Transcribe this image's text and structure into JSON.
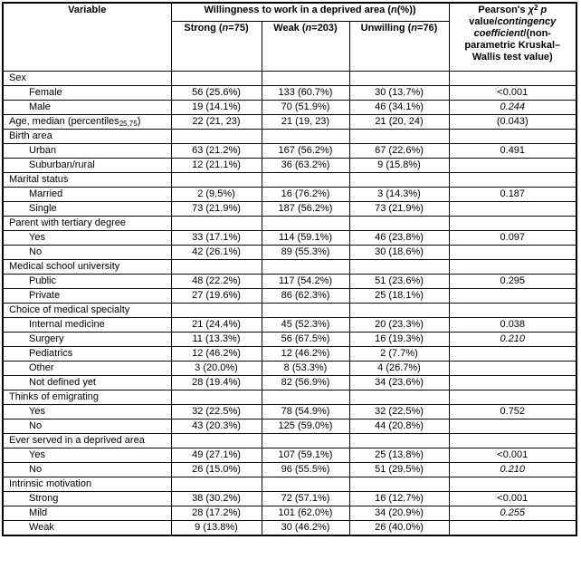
{
  "colors": {
    "background": "#ffffff",
    "text": "#000000",
    "border": "#000000"
  },
  "table": {
    "header": {
      "variable": "Variable",
      "group": [
        {
          "t": "Willingness to work in a deprived area ("
        },
        {
          "t": "n",
          "s": "i"
        },
        {
          "t": "(%))"
        }
      ],
      "cols": [
        [
          {
            "t": "Strong ("
          },
          {
            "t": "n",
            "s": "i"
          },
          {
            "t": "=75)"
          }
        ],
        [
          {
            "t": "Weak ("
          },
          {
            "t": "n",
            "s": "i"
          },
          {
            "t": "=203)"
          }
        ],
        [
          {
            "t": "Unwilling ("
          },
          {
            "t": "n",
            "s": "i"
          },
          {
            "t": "=76)"
          }
        ]
      ],
      "stat": [
        {
          "t": "Pearson's "
        },
        {
          "t": "χ",
          "s": "i"
        },
        {
          "t": "2",
          "s": "sup"
        },
        {
          "t": " ",
          "s": ""
        },
        {
          "t": "p",
          "s": "i"
        },
        {
          "t": " value/"
        },
        {
          "t": "contingency coefficient",
          "s": "i"
        },
        {
          "t": "/(non-parametric Kruskal–Wallis test value)"
        }
      ]
    },
    "rows": [
      {
        "label": "Sex",
        "indent": false,
        "cells": [
          "",
          "",
          ""
        ],
        "p": "",
        "p_italic": false
      },
      {
        "label": "Female",
        "indent": true,
        "cells": [
          "56 (25.6%)",
          "133 (60.7%)",
          "30 (13.7%)"
        ],
        "p": "<0.001",
        "p_italic": false
      },
      {
        "label": "Male",
        "indent": true,
        "cells": [
          "19 (14.1%)",
          "70 (51.9%)",
          "46 (34.1%)"
        ],
        "p": "0.244",
        "p_italic": true
      },
      {
        "label": "Age, median (percentiles25,75)",
        "label_rich": [
          {
            "t": "Age, median (percentiles"
          },
          {
            "t": "25,75",
            "s": "sub"
          },
          {
            "t": ")"
          }
        ],
        "indent": false,
        "cells": [
          "22 (21, 23)",
          "21 (19, 23)",
          "21 (20, 24)"
        ],
        "p": "(0.043)",
        "p_italic": false
      },
      {
        "label": "Birth area",
        "indent": false,
        "cells": [
          "",
          "",
          ""
        ],
        "p": "",
        "p_italic": false
      },
      {
        "label": "Urban",
        "indent": true,
        "cells": [
          "63 (21.2%)",
          "167 (56.2%)",
          "67 (22.6%)"
        ],
        "p": "0.491",
        "p_italic": false
      },
      {
        "label": "Suburban/rural",
        "indent": true,
        "cells": [
          "12 (21.1%)",
          "36 (63.2%)",
          "9 (15.8%)"
        ],
        "p": "",
        "p_italic": false
      },
      {
        "label": "Marital status",
        "indent": false,
        "cells": [
          "",
          "",
          ""
        ],
        "p": "",
        "p_italic": false
      },
      {
        "label": "Married",
        "indent": true,
        "cells": [
          "2 (9.5%)",
          "16 (76.2%)",
          "3 (14.3%)"
        ],
        "p": "0.187",
        "p_italic": false
      },
      {
        "label": "Single",
        "indent": true,
        "cells": [
          "73 (21.9%)",
          "187 (56.2%)",
          "73 (21.9%)"
        ],
        "p": "",
        "p_italic": false
      },
      {
        "label": "Parent with tertiary degree",
        "indent": false,
        "cells": [
          "",
          "",
          ""
        ],
        "p": "",
        "p_italic": false
      },
      {
        "label": "Yes",
        "indent": true,
        "cells": [
          "33 (17.1%)",
          "114 (59.1%)",
          "46 (23.8%)"
        ],
        "p": "0.097",
        "p_italic": false
      },
      {
        "label": "No",
        "indent": true,
        "cells": [
          "42 (26.1%)",
          "89 (55.3%)",
          "30 (18.6%)"
        ],
        "p": "",
        "p_italic": false
      },
      {
        "label": "Medical school university",
        "indent": false,
        "cells": [
          "",
          "",
          ""
        ],
        "p": "",
        "p_italic": false
      },
      {
        "label": "Public",
        "indent": true,
        "cells": [
          "48 (22.2%)",
          "117 (54.2%)",
          "51 (23.6%)"
        ],
        "p": "0.295",
        "p_italic": false
      },
      {
        "label": "Private",
        "indent": true,
        "cells": [
          "27 (19.6%)",
          "86 (62.3%)",
          "25 (18.1%)"
        ],
        "p": "",
        "p_italic": false
      },
      {
        "label": "Choice of medical specialty",
        "indent": false,
        "cells": [
          "",
          "",
          ""
        ],
        "p": "",
        "p_italic": false
      },
      {
        "label": "Internal medicine",
        "indent": true,
        "cells": [
          "21 (24.4%)",
          "45 (52.3%)",
          "20 (23.3%)"
        ],
        "p": "0.038",
        "p_italic": false
      },
      {
        "label": "Surgery",
        "indent": true,
        "cells": [
          "11 (13.3%)",
          "56 (67.5%)",
          "16 (19.3%)"
        ],
        "p": "0.210",
        "p_italic": true
      },
      {
        "label": "Pediatrics",
        "indent": true,
        "cells": [
          "12 (46.2%)",
          "12 (46.2%)",
          "2 (7.7%)"
        ],
        "p": "",
        "p_italic": false
      },
      {
        "label": "Other",
        "indent": true,
        "cells": [
          "3 (20.0%)",
          "8 (53.3%)",
          "4 (26.7%)"
        ],
        "p": "",
        "p_italic": false
      },
      {
        "label": "Not defined yet",
        "indent": true,
        "cells": [
          "28 (19.4%)",
          "82 (56.9%)",
          "34 (23.6%)"
        ],
        "p": "",
        "p_italic": false
      },
      {
        "label": "Thinks of emigrating",
        "indent": false,
        "cells": [
          "",
          "",
          ""
        ],
        "p": "",
        "p_italic": false
      },
      {
        "label": "Yes",
        "indent": true,
        "cells": [
          "32 (22.5%)",
          "78 (54.9%)",
          "32 (22.5%)"
        ],
        "p": "0.752",
        "p_italic": false
      },
      {
        "label": "No",
        "indent": true,
        "cells": [
          "43 (20.3%)",
          "125 (59.0%)",
          "44 (20.8%)"
        ],
        "p": "",
        "p_italic": false
      },
      {
        "label": "Ever served in a deprived area",
        "indent": false,
        "cells": [
          "",
          "",
          ""
        ],
        "p": "",
        "p_italic": false
      },
      {
        "label": "Yes",
        "indent": true,
        "cells": [
          "49 (27.1%)",
          "107 (59.1%)",
          "25 (13.8%)"
        ],
        "p": "<0.001",
        "p_italic": false
      },
      {
        "label": "No",
        "indent": true,
        "cells": [
          "26 (15.0%)",
          "96 (55.5%)",
          "51 (29.5%)"
        ],
        "p": "0.210",
        "p_italic": true
      },
      {
        "label": "Intrinsic motivation",
        "indent": false,
        "cells": [
          "",
          "",
          ""
        ],
        "p": "",
        "p_italic": false
      },
      {
        "label": "Strong",
        "indent": true,
        "cells": [
          "38 (30.2%)",
          "72 (57.1%)",
          "16 (12.7%)"
        ],
        "p": "<0.001",
        "p_italic": false
      },
      {
        "label": "Mild",
        "indent": true,
        "cells": [
          "28 (17.2%)",
          "101 (62.0%)",
          "34 (20.9%)"
        ],
        "p": "0.255",
        "p_italic": true
      },
      {
        "label": "Weak",
        "indent": true,
        "cells": [
          "9 (13.8%)",
          "30 (46.2%)",
          "26 (40.0%)"
        ],
        "p": "",
        "p_italic": false
      }
    ]
  }
}
